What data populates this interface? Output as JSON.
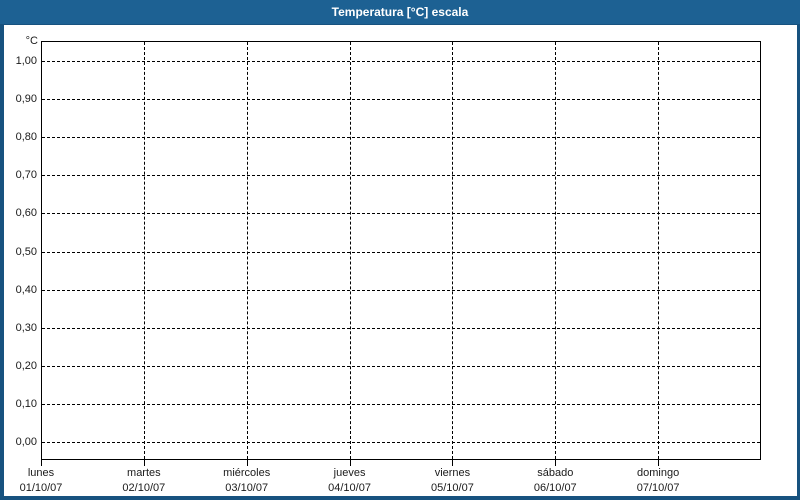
{
  "window": {
    "title": "Temperatura [°C] escala"
  },
  "colors": {
    "titlebar_bg": "#1D6193",
    "frame_border": "#17527F",
    "title_text": "#FFFFFF",
    "plot_bg": "#FFFFFF",
    "axis_line": "#000000",
    "grid_line": "#000000",
    "label_text": "#1A1A1A"
  },
  "chart_data": {
    "type": "line",
    "title": "Temperatura [°C] escala",
    "ylabel": "°C",
    "xlabel": "",
    "ylim": [
      0.0,
      1.0
    ],
    "y_tick_step": 0.1,
    "decimal_separator": ",",
    "y_tick_labels": [
      "1,00",
      "0,90",
      "0,80",
      "0,70",
      "0,60",
      "0,50",
      "0,40",
      "0,30",
      "0,20",
      "0,10",
      "0,00"
    ],
    "grid": "dashed",
    "legend": "none",
    "x_categories": [
      {
        "day": "lunes",
        "date": "01/10/07"
      },
      {
        "day": "martes",
        "date": "02/10/07"
      },
      {
        "day": "miércoles",
        "date": "03/10/07"
      },
      {
        "day": "jueves",
        "date": "04/10/07"
      },
      {
        "day": "viernes",
        "date": "05/10/07"
      },
      {
        "day": "sábado",
        "date": "06/10/07"
      },
      {
        "day": "domingo",
        "date": "07/10/07"
      }
    ],
    "series": []
  }
}
